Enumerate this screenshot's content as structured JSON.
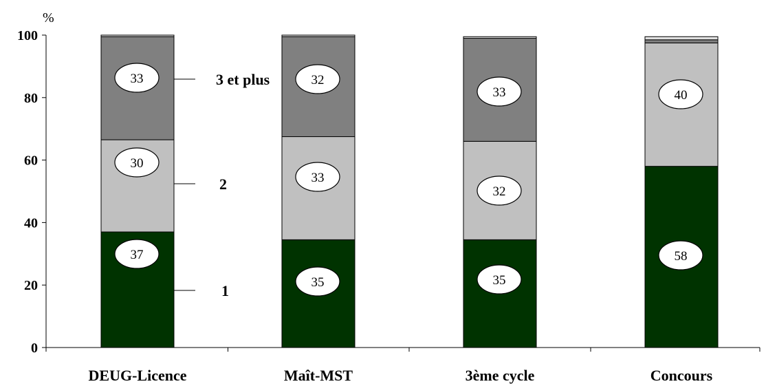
{
  "chart_data": {
    "type": "bar",
    "stacked": true,
    "unit": "%",
    "ylim": [
      0,
      100
    ],
    "yticks": [
      0,
      20,
      40,
      60,
      80,
      100
    ],
    "categories": [
      "DEUG-Licence",
      "Maît-MST",
      "3ème cycle",
      "Concours"
    ],
    "series": [
      {
        "name": "1",
        "values": [
          37,
          34.5,
          34.5,
          58
        ],
        "labels": [
          "37",
          "35",
          "35",
          "58"
        ],
        "color": "#003300"
      },
      {
        "name": "2",
        "values": [
          29.5,
          33,
          31.5,
          39.5
        ],
        "labels": [
          "30",
          "33",
          "32",
          "40"
        ],
        "color": "#c0c0c0"
      },
      {
        "name": "3 et plus",
        "values": [
          33,
          32,
          33,
          1
        ],
        "labels": [
          "33",
          "32",
          "33",
          ""
        ],
        "color": "#808080"
      },
      {
        "name": "",
        "values": [
          0.5,
          0.5,
          0.5,
          1
        ],
        "labels": [
          "",
          "",
          "",
          ""
        ],
        "color": "#e0e0e0"
      }
    ],
    "series_label_rows": [
      "DEUG-Licence",
      "DEUG-Licence",
      "DEUG-Licence"
    ],
    "grid": false,
    "legend": "inline labels next to first bar"
  }
}
